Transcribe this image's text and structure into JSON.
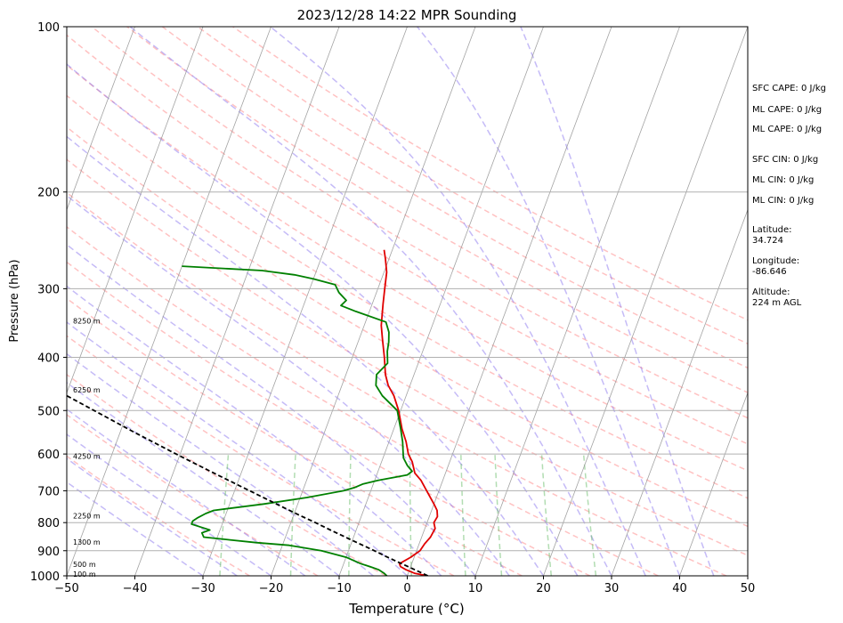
{
  "chart_data": {
    "type": "line",
    "title": "2023/12/28 14:22 MPR Sounding",
    "xlabel": "Temperature (°C)",
    "ylabel": "Pressure (hPa)",
    "xlim": [
      -50,
      50
    ],
    "ylim": [
      1000,
      100
    ],
    "y_scale": "log",
    "x_ticks": [
      -50,
      -40,
      -30,
      -20,
      -10,
      0,
      10,
      20,
      30,
      40,
      50
    ],
    "y_ticks": [
      100,
      200,
      300,
      400,
      500,
      600,
      700,
      800,
      900,
      1000
    ],
    "grid": "horizontal lines at y ticks; gray diagonal isotherms",
    "colors": {
      "temperature": "#e00000",
      "dewpoint": "#008000",
      "parcel": "#000000",
      "dry_adiabat": "#ff9a9a",
      "moist_adiabat": "#8c78f0",
      "mixing_ratio": "#66bb66",
      "isotherm": "#999999"
    },
    "series": [
      {
        "role": "temperature",
        "points": [
          [
            1000,
            3.0
          ],
          [
            990,
            1.0
          ],
          [
            975,
            -0.5
          ],
          [
            962,
            -1.5
          ],
          [
            950,
            -1.8
          ],
          [
            925,
            -0.5
          ],
          [
            900,
            0.5
          ],
          [
            875,
            0.8
          ],
          [
            850,
            1.3
          ],
          [
            820,
            1.5
          ],
          [
            800,
            1.0
          ],
          [
            780,
            1.2
          ],
          [
            760,
            0.8
          ],
          [
            740,
            0.0
          ],
          [
            700,
            -1.8
          ],
          [
            670,
            -3.2
          ],
          [
            650,
            -4.5
          ],
          [
            620,
            -5.5
          ],
          [
            600,
            -6.5
          ],
          [
            570,
            -7.5
          ],
          [
            540,
            -8.8
          ],
          [
            500,
            -10.3
          ],
          [
            470,
            -11.8
          ],
          [
            450,
            -13.2
          ],
          [
            430,
            -14.2
          ],
          [
            400,
            -15.3
          ],
          [
            370,
            -16.6
          ],
          [
            350,
            -17.5
          ],
          [
            320,
            -18.4
          ],
          [
            300,
            -19.0
          ],
          [
            280,
            -19.6
          ],
          [
            265,
            -20.5
          ],
          [
            255,
            -21.2
          ]
        ]
      },
      {
        "role": "dewpoint",
        "points": [
          [
            1000,
            -3.0
          ],
          [
            990,
            -3.5
          ],
          [
            975,
            -4.5
          ],
          [
            962,
            -6.0
          ],
          [
            950,
            -7.5
          ],
          [
            925,
            -10.0
          ],
          [
            900,
            -14.0
          ],
          [
            880,
            -19.0
          ],
          [
            870,
            -24.0
          ],
          [
            860,
            -28.0
          ],
          [
            850,
            -32.0
          ],
          [
            835,
            -32.5
          ],
          [
            825,
            -31.5
          ],
          [
            815,
            -33.0
          ],
          [
            805,
            -34.5
          ],
          [
            795,
            -34.5
          ],
          [
            785,
            -34.0
          ],
          [
            770,
            -33.0
          ],
          [
            760,
            -32.0
          ],
          [
            740,
            -25.0
          ],
          [
            720,
            -19.0
          ],
          [
            700,
            -14.0
          ],
          [
            690,
            -12.5
          ],
          [
            680,
            -11.5
          ],
          [
            670,
            -9.5
          ],
          [
            655,
            -5.5
          ],
          [
            645,
            -5.0
          ],
          [
            630,
            -6.0
          ],
          [
            610,
            -7.0
          ],
          [
            590,
            -7.5
          ],
          [
            570,
            -8.0
          ],
          [
            540,
            -9.0
          ],
          [
            500,
            -10.5
          ],
          [
            470,
            -13.5
          ],
          [
            450,
            -15.0
          ],
          [
            430,
            -15.5
          ],
          [
            410,
            -14.5
          ],
          [
            390,
            -15.2
          ],
          [
            375,
            -15.5
          ],
          [
            360,
            -16.0
          ],
          [
            345,
            -17.0
          ],
          [
            330,
            -22.0
          ],
          [
            322,
            -24.5
          ],
          [
            315,
            -24.0
          ],
          [
            305,
            -25.5
          ],
          [
            295,
            -26.5
          ],
          [
            288,
            -30.0
          ],
          [
            283,
            -33.0
          ],
          [
            278,
            -38.0
          ],
          [
            273,
            -50.0
          ]
        ]
      },
      {
        "role": "parcel",
        "points": [
          [
            1000,
            3.0
          ],
          [
            975,
            0.8
          ],
          [
            950,
            -1.5
          ],
          [
            925,
            -3.9
          ],
          [
            900,
            -6.2
          ],
          [
            875,
            -8.7
          ],
          [
            850,
            -11.2
          ],
          [
            825,
            -13.8
          ],
          [
            800,
            -16.4
          ],
          [
            775,
            -19.2
          ],
          [
            750,
            -22.0
          ],
          [
            700,
            -27.8
          ],
          [
            650,
            -34.0
          ],
          [
            600,
            -40.6
          ],
          [
            550,
            -47.6
          ],
          [
            500,
            -55.0
          ],
          [
            450,
            -63.2
          ],
          [
            400,
            -72.4
          ],
          [
            350,
            -82.6
          ],
          [
            300,
            -94.0
          ],
          [
            275,
            -100.0
          ]
        ]
      }
    ],
    "height_labels": [
      {
        "label": "100 m",
        "p": 993
      },
      {
        "label": "500 m",
        "p": 952
      },
      {
        "label": "1300 m",
        "p": 868
      },
      {
        "label": "2250 m",
        "p": 778
      },
      {
        "label": "4250 m",
        "p": 605
      },
      {
        "label": "6250 m",
        "p": 458
      },
      {
        "label": "8250 m",
        "p": 343
      }
    ],
    "annotations": [
      "SFC CAPE: 0 J/kg",
      "ML CAPE: 0 J/kg",
      "ML CAPE: 0 J/kg",
      "SFC CIN: 0 J/kg",
      "ML CIN: 0 J/kg",
      "ML CIN: 0 J/kg",
      "Latitude:",
      "34.724",
      "Longitude:",
      "-86.646",
      "Altitude:",
      "224 m AGL"
    ]
  }
}
